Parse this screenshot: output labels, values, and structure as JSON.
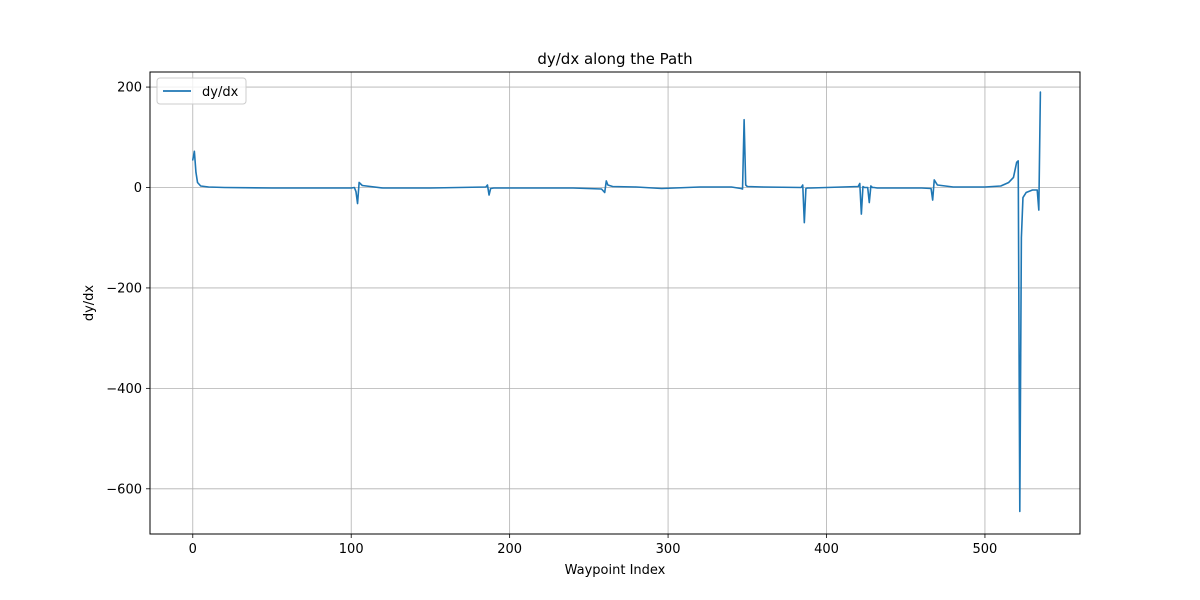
{
  "chart_data": {
    "type": "line",
    "title": "dy/dx along the Path",
    "xlabel": "Waypoint Index",
    "ylabel": "dy/dx",
    "xlim": [
      -27,
      560
    ],
    "ylim": [
      -690,
      230
    ],
    "xticks": [
      0,
      100,
      200,
      300,
      400,
      500
    ],
    "yticks": [
      200,
      0,
      -200,
      -400,
      -600
    ],
    "xtick_labels": [
      "0",
      "100",
      "200",
      "300",
      "400",
      "500"
    ],
    "ytick_labels": [
      "200",
      "0",
      "−200",
      "−400",
      "−600"
    ],
    "grid": true,
    "legend": "top-left",
    "colors": {
      "series": "#1f77b4",
      "grid": "#b0b0b0",
      "axes": "#000000"
    },
    "series": [
      {
        "name": "dy/dx",
        "x": [
          0,
          1,
          2,
          3,
          5,
          10,
          20,
          50,
          100,
          102,
          103,
          104,
          105,
          107,
          120,
          150,
          185,
          186,
          187,
          188,
          190,
          200,
          240,
          258,
          260,
          261,
          262,
          265,
          280,
          296,
          320,
          340,
          346,
          347,
          348,
          349,
          350,
          360,
          384,
          385,
          386,
          387,
          388,
          390,
          400,
          420,
          421,
          422,
          423,
          424,
          426,
          427,
          428,
          429,
          430,
          432,
          440,
          460,
          466,
          467,
          468,
          470,
          480,
          500,
          510,
          515,
          518,
          520,
          521,
          522,
          523,
          524,
          526,
          530,
          533,
          534,
          535
        ],
        "values": [
          55,
          72,
          30,
          10,
          3,
          1,
          0,
          -1,
          -1,
          0,
          -8,
          -32,
          10,
          4,
          -1,
          -1,
          1,
          5,
          -15,
          -2,
          -1,
          -1,
          -1,
          -3,
          -10,
          13,
          5,
          2,
          1,
          -2,
          1,
          1,
          -2,
          -3,
          135,
          5,
          2,
          1,
          0,
          5,
          -70,
          -2,
          -1,
          -1,
          0,
          2,
          8,
          -53,
          2,
          0,
          0,
          -30,
          3,
          0,
          0,
          -1,
          -1,
          -1,
          -2,
          -25,
          15,
          5,
          1,
          1,
          3,
          10,
          20,
          50,
          53,
          -645,
          -100,
          -20,
          -10,
          -5,
          -5,
          -45,
          190
        ]
      }
    ]
  }
}
